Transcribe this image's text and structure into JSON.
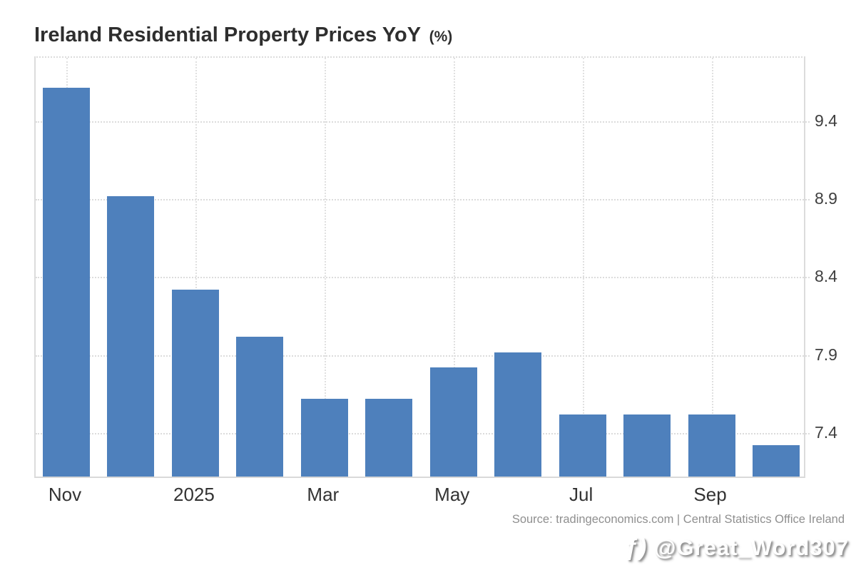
{
  "chart_data": {
    "type": "bar",
    "title": "Ireland Residential Property Prices YoY",
    "title_suffix": "(%)",
    "bar_count": 12,
    "values": [
      9.6,
      8.9,
      8.3,
      8.0,
      7.6,
      7.6,
      7.8,
      7.9,
      7.5,
      7.5,
      7.5,
      7.3
    ],
    "xticks": [
      {
        "bar_index": 0,
        "label": "Nov"
      },
      {
        "bar_index": 2,
        "label": "2025"
      },
      {
        "bar_index": 4,
        "label": "Mar"
      },
      {
        "bar_index": 6,
        "label": "May"
      },
      {
        "bar_index": 8,
        "label": "Jul"
      },
      {
        "bar_index": 10,
        "label": "Sep"
      }
    ],
    "yticks": [
      "9.4",
      "8.9",
      "8.4",
      "7.9",
      "7.4"
    ],
    "ylim": [
      7.1,
      9.81
    ],
    "ylabel_side": "right",
    "grid": "dotted horizontal lines at y ticks, dotted vertical lines at x ticks",
    "legend": "none",
    "bar_color": "#4e80bc"
  },
  "footer": {
    "source": "Source: tradingeconomics.com | Central Statistics Office Ireland",
    "watermark_icon": "ƒ)",
    "watermark_handle": "@Great_Word307"
  },
  "colors": {
    "bar": "#4e80bc",
    "grid": "#dcdcdc",
    "title_text": "#2e2e2e",
    "axis_label": "#3f3f3f",
    "source_text": "#8f8f8f"
  }
}
